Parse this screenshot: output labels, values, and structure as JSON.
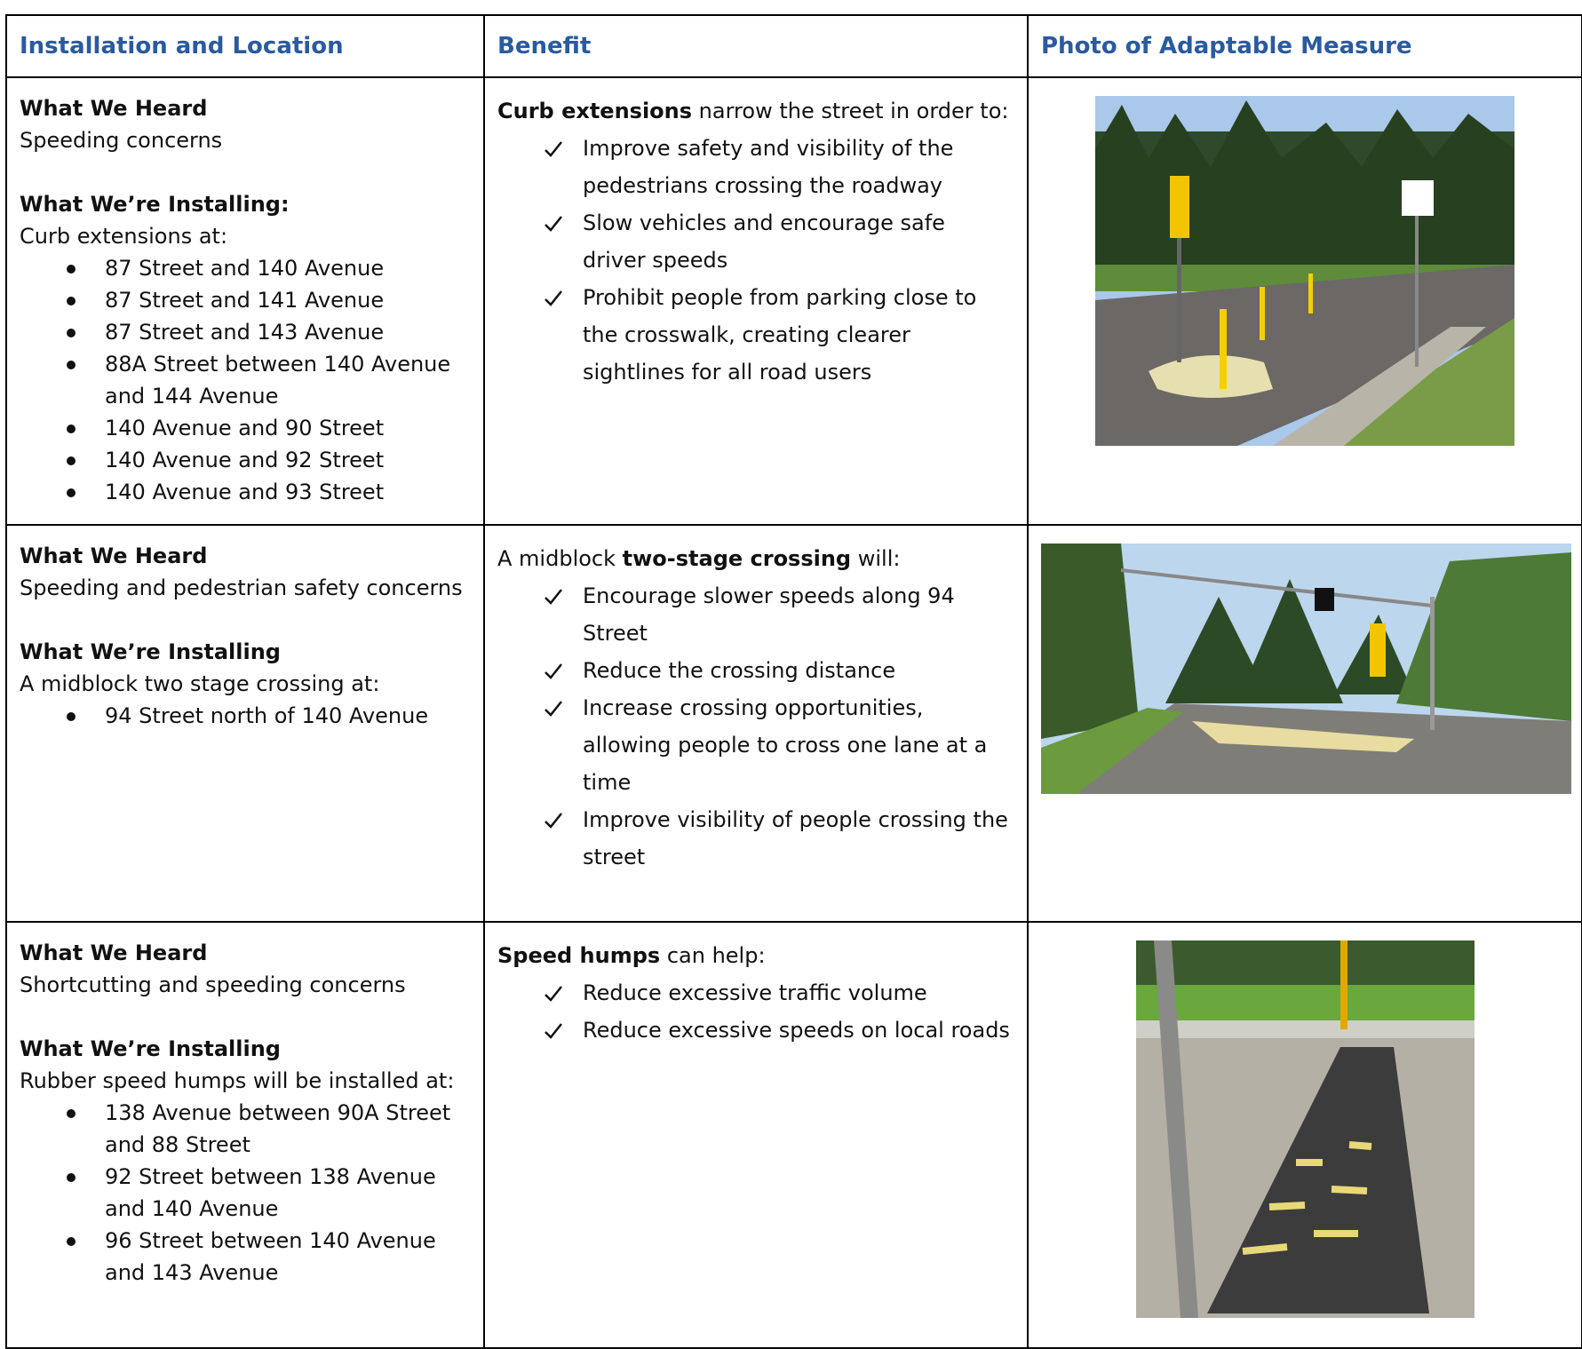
{
  "table": {
    "headers": [
      "Installation and Location",
      "Benefit",
      "Photo of Adaptable Measure"
    ],
    "rows": [
      {
        "heard_label": "What We Heard",
        "heard_text": "Speeding concerns",
        "installing_label": "What We’re Installing:",
        "installing_text": "Curb extensions at:",
        "locations": [
          "87 Street and 140 Avenue",
          "87 Street and 141 Avenue",
          "87 Street and 143 Avenue",
          "88A Street between 140 Avenue and 144 Avenue",
          "140 Avenue and 90 Street",
          "140 Avenue and 92 Street",
          "140 Avenue and 93 Street"
        ],
        "intro_bold": "Curb extensions",
        "intro_after": " narrow the street in order to:",
        "benefits": [
          "Improve safety and visibility of the pedestrians crossing the roadway",
          "Slow vehicles and encourage safe driver speeds",
          "Prohibit people from parking close to the crosswalk, creating clearer sightlines for all road users"
        ]
      },
      {
        "heard_label": "What We Heard",
        "heard_text": "Speeding and pedestrian safety concerns",
        "installing_label": "What We’re Installing",
        "installing_text": "A midblock two stage crossing at:",
        "locations": [
          "94 Street north of 140 Avenue"
        ],
        "intro_before": "A midblock ",
        "intro_bold": "two-stage crossing",
        "intro_after": " will:",
        "benefits": [
          "Encourage slower speeds along 94 Street",
          "Reduce the crossing distance",
          "Increase crossing opportunities, allowing people to cross one lane at a time",
          "Improve visibility of people crossing the street"
        ]
      },
      {
        "heard_label": "What We Heard",
        "heard_text": "Shortcutting and speeding concerns",
        "installing_label": "What We’re Installing",
        "installing_text": "Rubber speed humps will be installed at:",
        "locations": [
          "138 Avenue between 90A Street and 88 Street",
          "92 Street between 138 Avenue and 140 Avenue",
          "96 Street between 140 Avenue and 143 Avenue"
        ],
        "intro_bold": "Speed humps",
        "intro_after": " can help:",
        "benefits": [
          "Reduce excessive traffic volume",
          "Reduce excessive speeds on local roads"
        ]
      }
    ]
  }
}
